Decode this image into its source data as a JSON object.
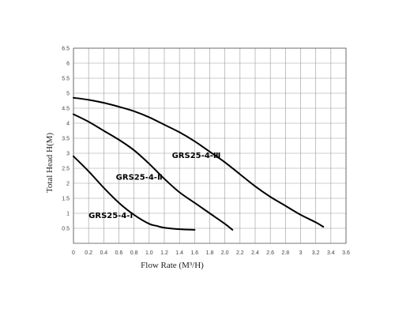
{
  "chart_data": {
    "type": "line",
    "title": "",
    "xlabel": "Flow Rate (M³/H)",
    "ylabel": "Total Head H(M)",
    "xlim": [
      0,
      3.6
    ],
    "ylim": [
      0,
      6.5
    ],
    "grid": true,
    "x_ticks": [
      "0",
      "0.2",
      "0.4",
      "0.6",
      "0.8",
      "1.0",
      "1.2",
      "1.4",
      "1.6",
      "1.8",
      "2.0",
      "2.2",
      "2.4",
      "2.6",
      "2.8",
      "3",
      "3.2",
      "3.4",
      "3.6"
    ],
    "y_ticks": [
      "0.5",
      "1",
      "1.5",
      "2",
      "2.5",
      "3",
      "3.5",
      "4",
      "4.5",
      "5",
      "5.5",
      "6",
      "6.5"
    ],
    "series": [
      {
        "name": "GRS25-4-I",
        "x": [
          0,
          0.2,
          0.4,
          0.6,
          0.8,
          1.0,
          1.1,
          1.2,
          1.4,
          1.6
        ],
        "y": [
          2.9,
          2.4,
          1.85,
          1.35,
          0.95,
          0.65,
          0.58,
          0.52,
          0.47,
          0.45
        ]
      },
      {
        "name": "GRS25-4-II",
        "x": [
          0,
          0.2,
          0.4,
          0.6,
          0.8,
          1.0,
          1.2,
          1.4,
          1.6,
          1.8,
          2.0,
          2.1
        ],
        "y": [
          4.3,
          4.05,
          3.75,
          3.45,
          3.1,
          2.65,
          2.15,
          1.7,
          1.35,
          1.0,
          0.65,
          0.45
        ]
      },
      {
        "name": "GRS25-4-III",
        "x": [
          0,
          0.2,
          0.4,
          0.6,
          0.8,
          1.0,
          1.2,
          1.4,
          1.6,
          1.8,
          2.0,
          2.2,
          2.4,
          2.6,
          2.8,
          3.0,
          3.2,
          3.3
        ],
        "y": [
          4.85,
          4.78,
          4.68,
          4.55,
          4.4,
          4.2,
          3.95,
          3.7,
          3.4,
          3.05,
          2.7,
          2.3,
          1.9,
          1.55,
          1.25,
          0.95,
          0.7,
          0.55
        ]
      }
    ],
    "annotations": [
      {
        "text": "GRS25-4-Ⅲ",
        "series": "GRS25-4-III",
        "x": 1.3,
        "y": 2.95
      },
      {
        "text": "GRS25-4-Ⅱ",
        "series": "GRS25-4-II",
        "x": 0.56,
        "y": 2.22
      },
      {
        "text": "GRS25-4-I",
        "series": "GRS25-4-I",
        "x": 0.2,
        "y": 0.95
      }
    ]
  }
}
